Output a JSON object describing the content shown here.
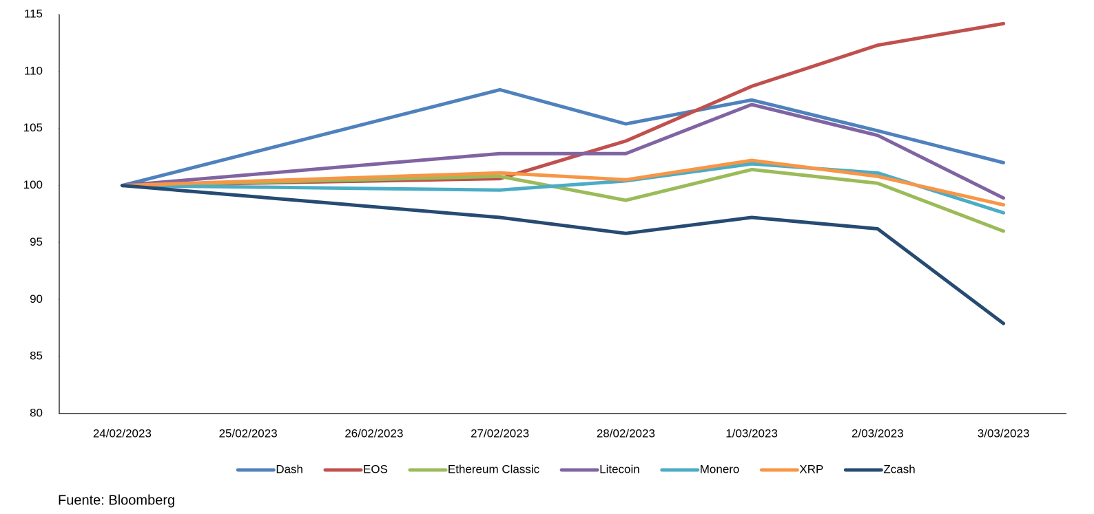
{
  "chart_data": {
    "type": "line",
    "categories": [
      "24/02/2023",
      "25/02/2023",
      "26/02/2023",
      "27/02/2023",
      "28/02/2023",
      "1/03/2023",
      "2/03/2023",
      "3/03/2023"
    ],
    "series": [
      {
        "name": "Dash",
        "color": "#4f81bd",
        "values": [
          100,
          null,
          null,
          108.4,
          105.4,
          107.5,
          104.8,
          102.0
        ]
      },
      {
        "name": "EOS",
        "color": "#c0504d",
        "values": [
          100,
          null,
          null,
          100.6,
          103.9,
          108.7,
          112.3,
          114.2
        ]
      },
      {
        "name": "Ethereum Classic",
        "color": "#9bbb59",
        "values": [
          100,
          null,
          null,
          100.8,
          98.7,
          101.4,
          100.2,
          96.0
        ]
      },
      {
        "name": "Litecoin",
        "color": "#8064a2",
        "values": [
          100,
          null,
          null,
          102.8,
          102.8,
          107.1,
          104.4,
          98.9
        ]
      },
      {
        "name": "Monero",
        "color": "#4bacc6",
        "values": [
          100,
          null,
          null,
          99.6,
          100.4,
          101.9,
          101.1,
          97.6
        ]
      },
      {
        "name": "XRP",
        "color": "#f79646",
        "values": [
          100,
          null,
          null,
          101.1,
          100.5,
          102.2,
          100.8,
          98.3
        ]
      },
      {
        "name": "Zcash",
        "color": "#264b73",
        "values": [
          100,
          null,
          null,
          97.2,
          95.8,
          97.2,
          96.2,
          87.9
        ]
      }
    ],
    "span_gaps": true,
    "ylim": [
      80,
      115
    ],
    "yticks": [
      80,
      85,
      90,
      95,
      100,
      105,
      110,
      115
    ],
    "grid": false,
    "legend": "bottom",
    "source": "Fuente: Bloomberg"
  }
}
